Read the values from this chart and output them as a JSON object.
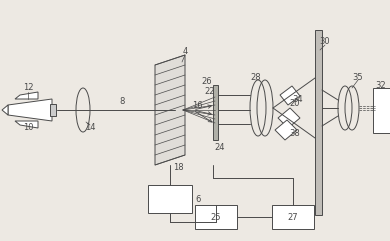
{
  "bg_color": "#ede9e3",
  "line_color": "#4a4a4a",
  "lw": 0.7,
  "fig_w": 3.9,
  "fig_h": 2.41,
  "dpi": 100
}
